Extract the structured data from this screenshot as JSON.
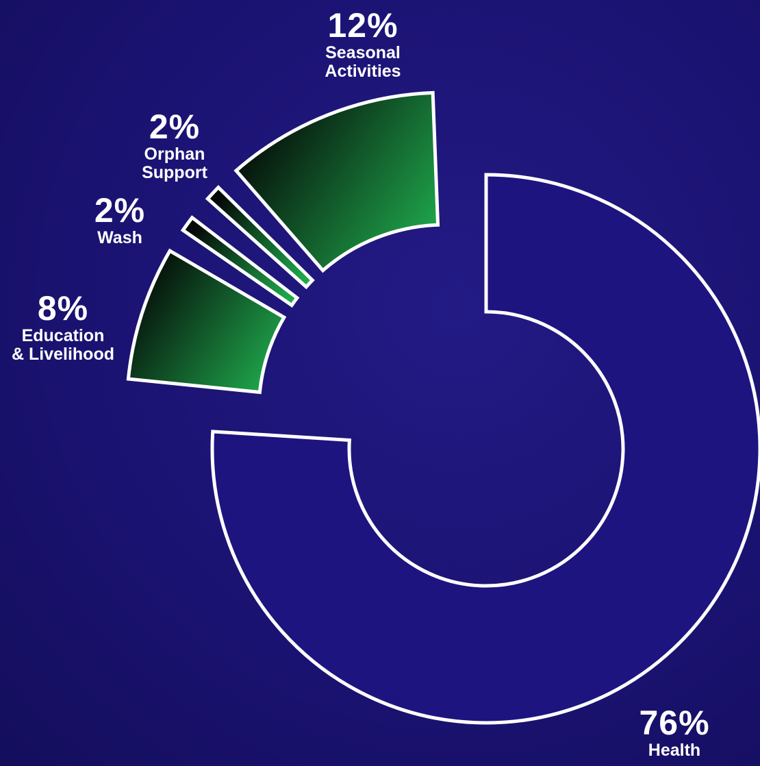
{
  "chart_data": {
    "type": "donut",
    "categories": [
      "Health",
      "Education\n& Livelihood",
      "Wash",
      "Orphan\nSupport",
      "Seasonal\nActivities"
    ],
    "values": [
      76,
      8,
      2,
      2,
      12
    ],
    "value_labels": [
      "76%",
      "8%",
      "2%",
      "2%",
      "12%"
    ],
    "colors": [
      "#1d1480",
      "#1fa84c",
      "#1fa84c",
      "#1fa84c",
      "#1fa84c"
    ]
  }
}
